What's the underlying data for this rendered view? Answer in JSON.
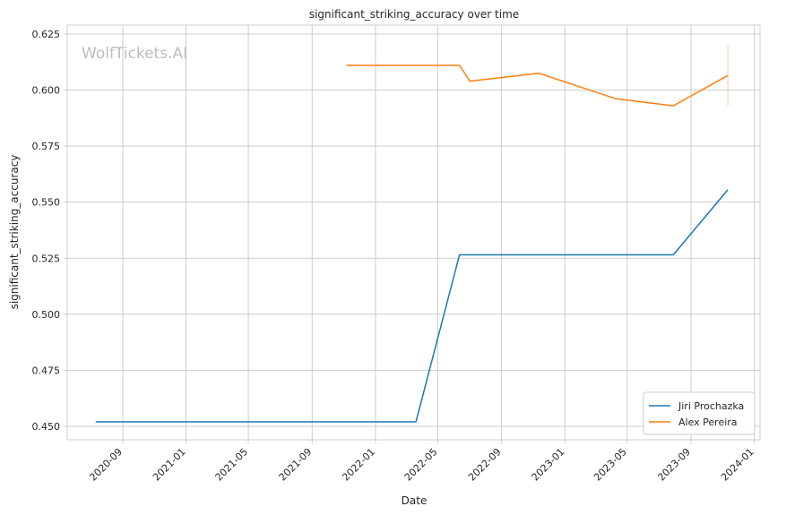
{
  "chart_data": {
    "type": "line",
    "title": "significant_striking_accuracy over time",
    "xlabel": "Date",
    "ylabel": "significant_striking_accuracy",
    "watermark": "WolfTickets.AI",
    "xlim": [
      "2020-05-17",
      "2024-01-12"
    ],
    "ylim": [
      0.444,
      0.629
    ],
    "yticks": [
      0.45,
      0.475,
      0.5,
      0.525,
      0.55,
      0.575,
      0.6,
      0.625
    ],
    "ytick_labels": [
      "0.450",
      "0.475",
      "0.500",
      "0.525",
      "0.550",
      "0.575",
      "0.600",
      "0.625"
    ],
    "xticks": [
      "2020-09-01",
      "2021-01-01",
      "2021-05-01",
      "2021-09-01",
      "2022-01-01",
      "2022-05-01",
      "2022-09-01",
      "2023-01-01",
      "2023-05-01",
      "2023-09-01",
      "2024-01-01"
    ],
    "xtick_labels": [
      "2020-09",
      "2021-01",
      "2021-05",
      "2021-09",
      "2022-01",
      "2022-05",
      "2022-09",
      "2023-01",
      "2023-05",
      "2023-09",
      "2024-01"
    ],
    "grid": true,
    "legend_position": "lower-right",
    "series": [
      {
        "name": "Jiri Prochazka",
        "color": "#1f77b4",
        "x": [
          "2020-07-11",
          "2022-03-20",
          "2022-06-12",
          "2023-07-29",
          "2023-11-11"
        ],
        "y": [
          0.452,
          0.452,
          0.5265,
          0.5265,
          0.5555
        ]
      },
      {
        "name": "Alex Pereira",
        "color": "#ff7f0e",
        "x": [
          "2021-11-06",
          "2022-06-12",
          "2022-07-02",
          "2022-11-12",
          "2023-04-08",
          "2023-07-29",
          "2023-11-11"
        ],
        "y": [
          0.611,
          0.611,
          0.604,
          0.6075,
          0.5962,
          0.593,
          0.6065
        ]
      }
    ],
    "error_bar": {
      "x": "2023-11-11",
      "y_low": 0.593,
      "y_high": 0.62,
      "color": "#ff7f0e"
    }
  }
}
